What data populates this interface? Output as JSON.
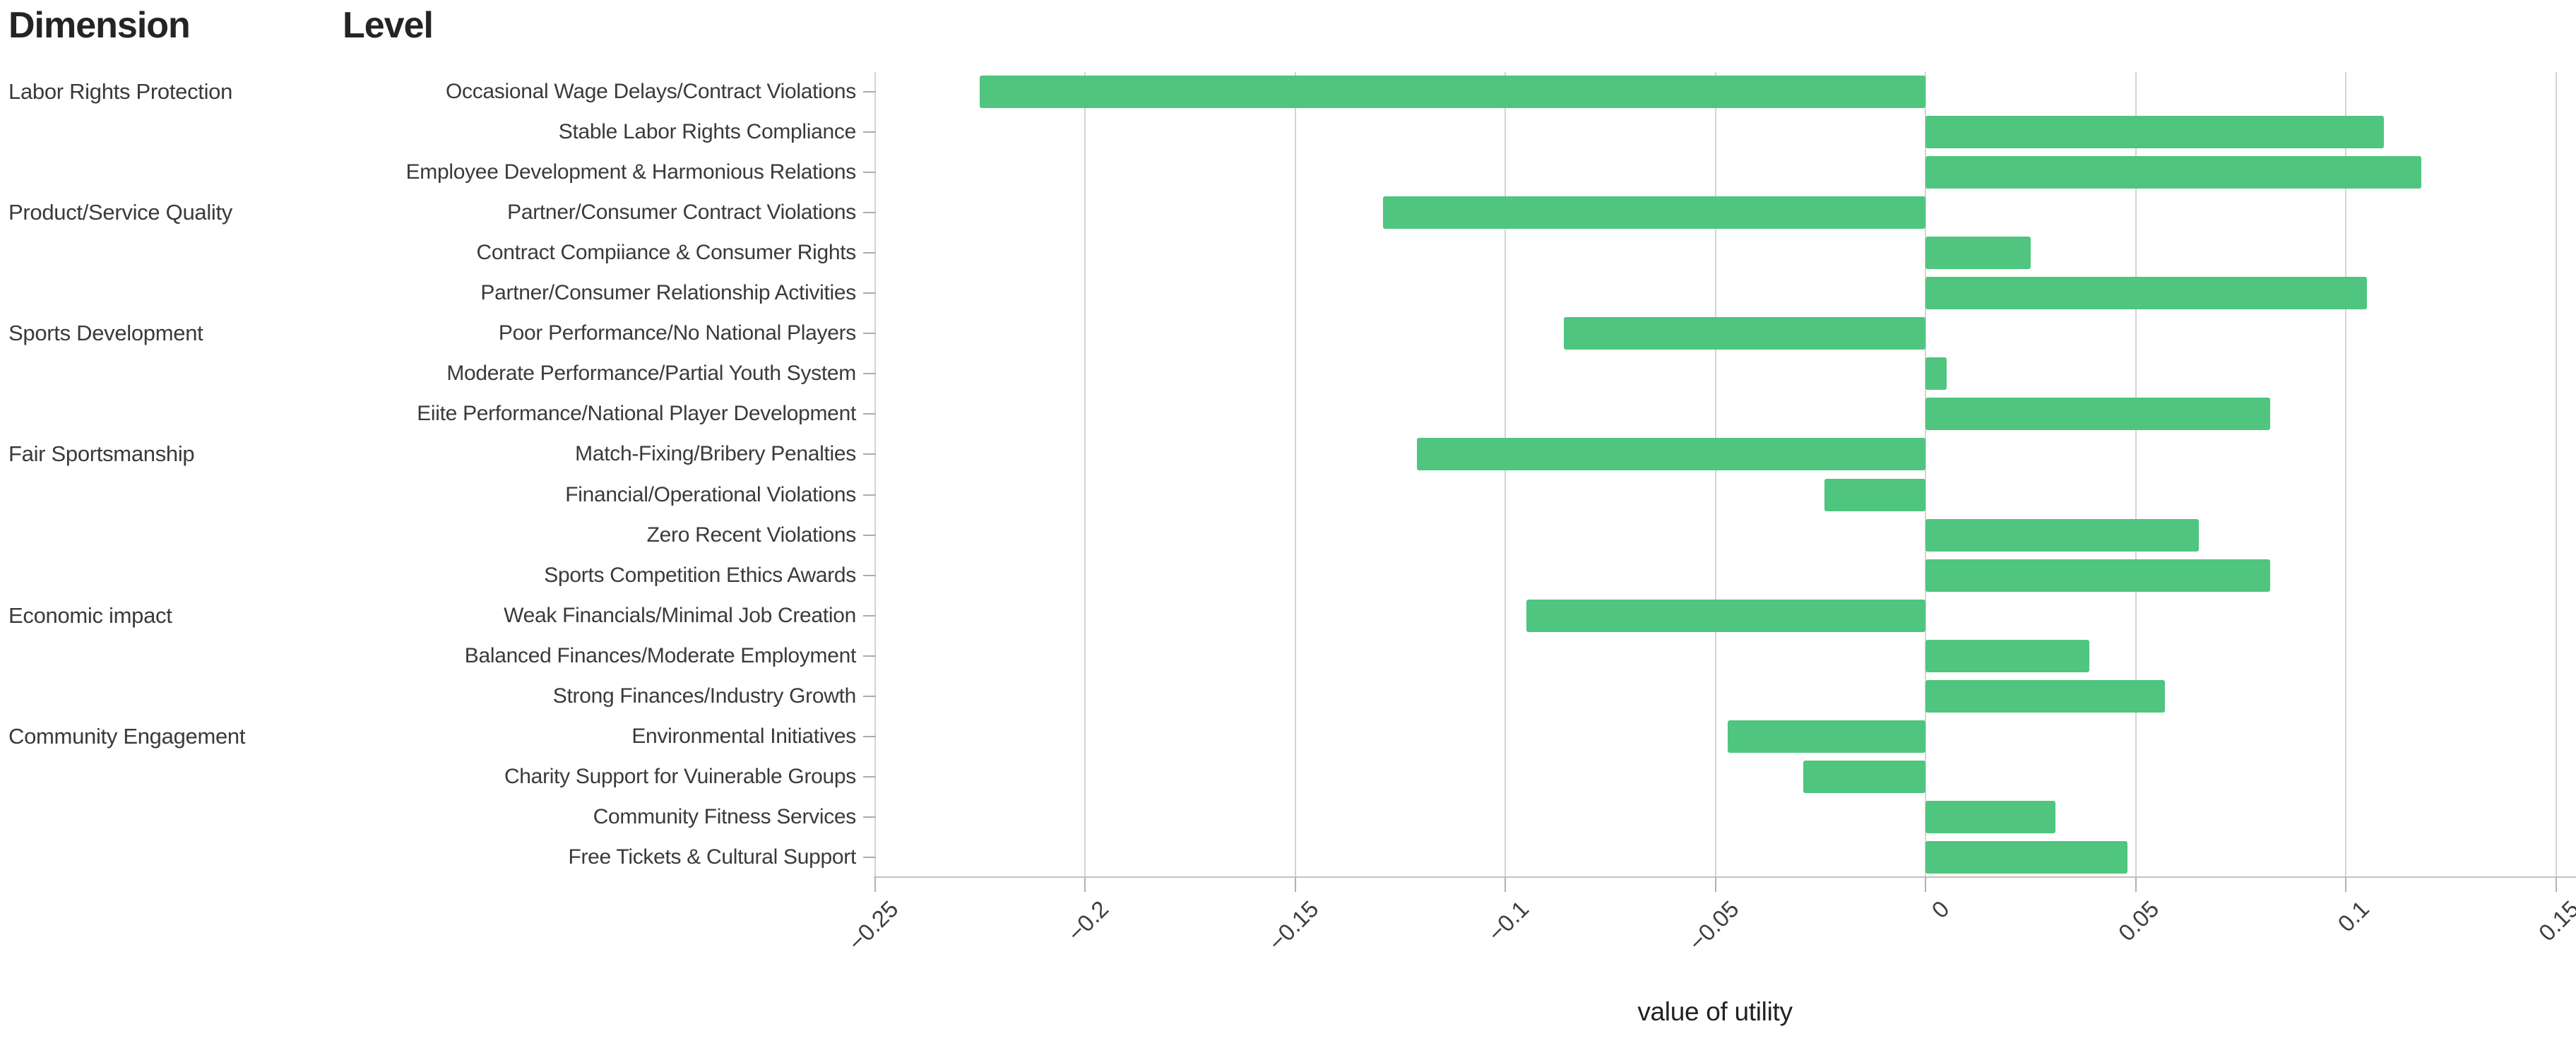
{
  "headers": {
    "dimension": "Dimension",
    "level": "Level"
  },
  "colors": {
    "bar_green": "#4fc57f",
    "gridline": "#d9d3d1",
    "axis_line": "#c6c0be",
    "text_dark": "#242424",
    "text_label": "#3a3a3a"
  },
  "chart_data": {
    "type": "bar",
    "orientation": "horizontal",
    "title": "",
    "xlabel": "value of utility",
    "ylabel": "",
    "xlim": [
      -0.25,
      0.15
    ],
    "grid": "vertical-only",
    "legend": "none",
    "bar_color": "#4fc57f",
    "column_headers": [
      "Dimension",
      "Level"
    ],
    "x_ticks": [
      -0.25,
      -0.2,
      -0.15,
      -0.1,
      -0.05,
      0,
      0.05,
      0.1,
      0.15
    ],
    "x_tick_labels": [
      "−0.25",
      "−0.2",
      "−0.15",
      "−0.1",
      "−0.05",
      "0",
      "0.05",
      "0.1",
      "0.15"
    ],
    "rows": [
      {
        "dimension": "Labor Rights Protection",
        "level": "Occasional Wage Delays/Contract Violations",
        "value": -0.225
      },
      {
        "dimension": "",
        "level": "Stable Labor Rights Compliance",
        "value": 0.109
      },
      {
        "dimension": "",
        "level": "Employee Development & Harmonious Relations",
        "value": 0.118
      },
      {
        "dimension": "Product/Service Quality",
        "level": "Partner/Consumer Contract Violations",
        "value": -0.129
      },
      {
        "dimension": "",
        "level": "Contract Compiiance & Consumer Rights",
        "value": 0.025
      },
      {
        "dimension": "",
        "level": "Partner/Consumer Relationship Activities",
        "value": 0.105
      },
      {
        "dimension": "Sports Development",
        "level": "Poor Performance/No National Players",
        "value": -0.086
      },
      {
        "dimension": "",
        "level": "Moderate Performance/Partial Youth System",
        "value": 0.005
      },
      {
        "dimension": "",
        "level": "Eiite Performance/National Player Development",
        "value": 0.082
      },
      {
        "dimension": "Fair Sportsmanship",
        "level": "Match-Fixing/Bribery Penalties",
        "value": -0.121
      },
      {
        "dimension": "",
        "level": "Financial/Operational Violations",
        "value": -0.024
      },
      {
        "dimension": "",
        "level": "Zero Recent Violations",
        "value": 0.065
      },
      {
        "dimension": "",
        "level": "Sports Competition Ethics Awards",
        "value": 0.082
      },
      {
        "dimension": "Economic impact",
        "level": "Weak Financials/Minimal Job Creation",
        "value": -0.095
      },
      {
        "dimension": "",
        "level": "Balanced Finances/Moderate Employment",
        "value": 0.039
      },
      {
        "dimension": "",
        "level": "Strong Finances/Industry Growth",
        "value": 0.057
      },
      {
        "dimension": "Community Engagement",
        "level": "Environmental Initiatives",
        "value": -0.047
      },
      {
        "dimension": "",
        "level": "Charity Support for Vuinerable Groups",
        "value": -0.029
      },
      {
        "dimension": "",
        "level": "Community Fitness Services",
        "value": 0.031
      },
      {
        "dimension": "",
        "level": "Free Tickets & Cultural Support",
        "value": 0.048
      }
    ]
  }
}
